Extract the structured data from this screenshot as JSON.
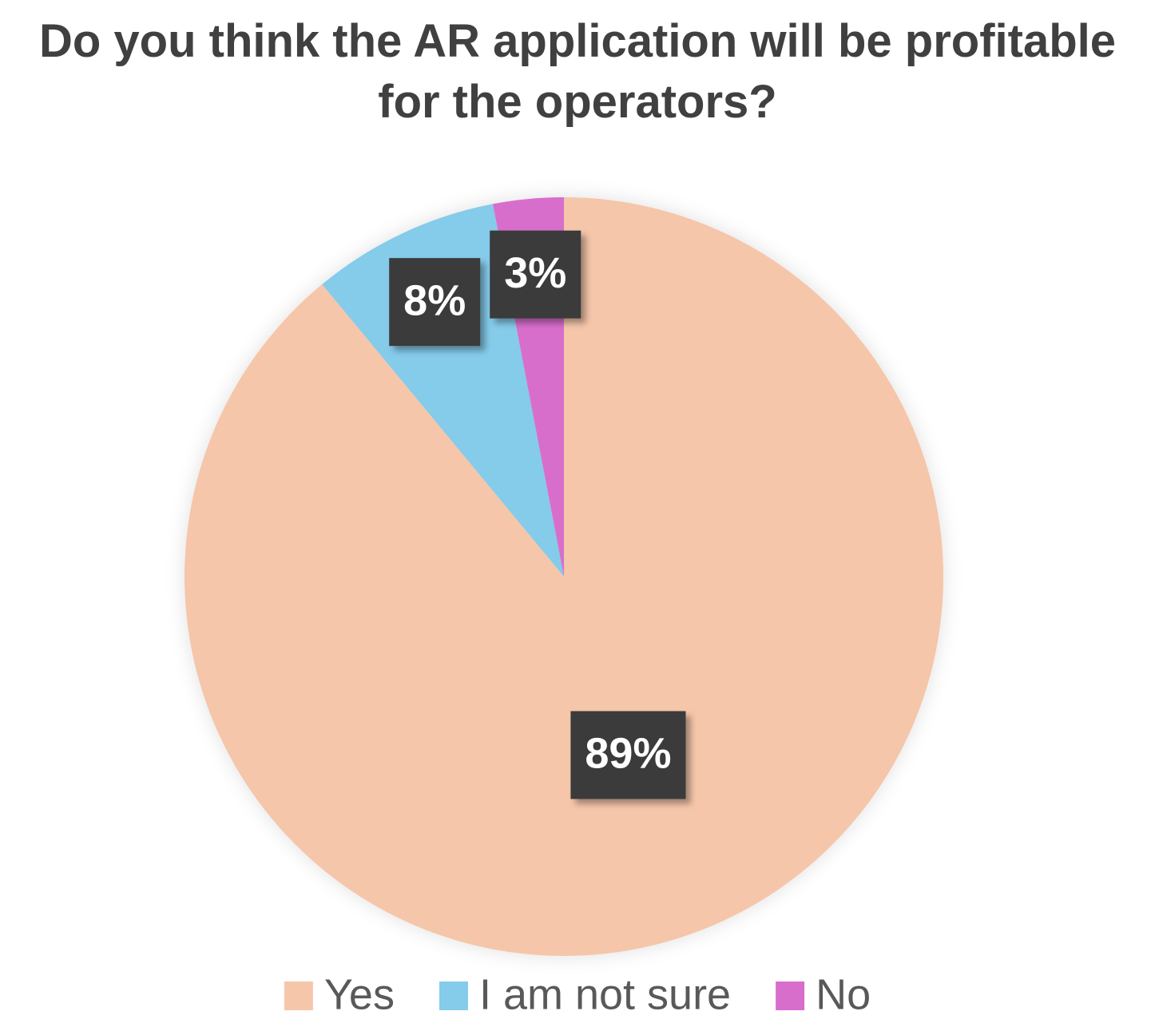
{
  "chart_data": {
    "type": "pie",
    "title": "Do you think the AR application will be profitable for the operators?",
    "categories": [
      "Yes",
      "I am not sure",
      "No"
    ],
    "values": [
      89,
      8,
      3
    ],
    "value_labels": [
      "89%",
      "8%",
      "3%"
    ],
    "colors": [
      "#f5c6aa",
      "#85cbea",
      "#d86ecc"
    ],
    "legend": "bottom"
  }
}
